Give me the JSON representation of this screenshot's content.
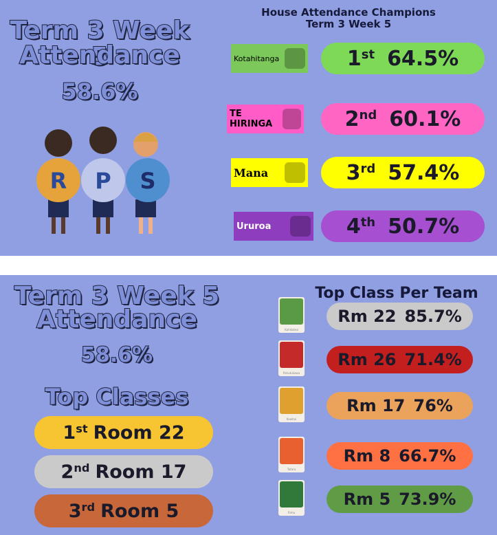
{
  "panel1": {
    "title": [
      "Term 3 Week 5",
      "Attendance"
    ],
    "overall": "58.6%",
    "logo": [
      "R",
      "P",
      "S"
    ],
    "heading": [
      "House Attendance Champions",
      "Term 3 Week 5"
    ],
    "rows": [
      {
        "house": "Kotahitanga",
        "rank": "1",
        "suffix": "st",
        "value": "64.5%"
      },
      {
        "house": "TE HIRINGA",
        "rank": "2",
        "suffix": "nd",
        "value": "60.1%"
      },
      {
        "house": "Mana",
        "rank": "3",
        "suffix": "rd",
        "value": "57.4%"
      },
      {
        "house": "Ururoa",
        "rank": "4",
        "suffix": "th",
        "value": "50.7%"
      }
    ]
  },
  "panel2": {
    "title": [
      "Term 3 Week 5",
      "Attendance"
    ],
    "overall": "58.6%",
    "top_classes_heading": "Top Classes",
    "top_classes": [
      {
        "rank": "1",
        "suffix": "st",
        "room": "Room 22"
      },
      {
        "rank": "2",
        "suffix": "nd",
        "room": "Room 17"
      },
      {
        "rank": "3",
        "suffix": "rd",
        "room": "Room 5"
      }
    ],
    "team_heading": "Top Class Per Team",
    "teams": [
      {
        "team": "Kahikatea",
        "room": "Rm 22",
        "value": "85.7%"
      },
      {
        "team": "Pohutukawa",
        "room": "Rm 26",
        "value": "71.4%"
      },
      {
        "team": "Kowhai",
        "room": "Rm 17",
        "value": "76%"
      },
      {
        "team": "Totara",
        "room": "Rm 8",
        "value": "66.7%"
      },
      {
        "team": "Rimu",
        "room": "Rm 5",
        "value": "73.9%"
      }
    ]
  }
}
